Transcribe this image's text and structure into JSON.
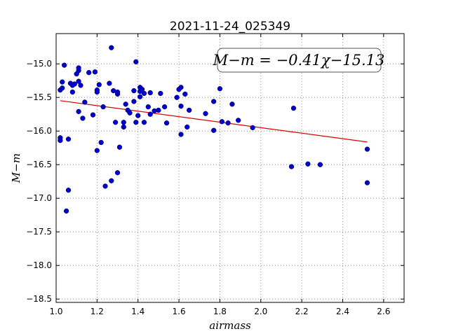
{
  "chart_data": {
    "type": "scatter",
    "title": "2021-11-24_025349",
    "xlabel": "airmass",
    "ylabel": "M−m",
    "xlim": [
      1.0,
      2.7
    ],
    "ylim": [
      -18.55,
      -14.55
    ],
    "x_ticks": [
      1.0,
      1.2,
      1.4,
      1.6,
      1.8,
      2.0,
      2.2,
      2.4,
      2.6
    ],
    "y_ticks": [
      -15.0,
      -15.5,
      -16.0,
      -16.5,
      -17.0,
      -17.5,
      -18.0,
      -18.5
    ],
    "x_tick_labels": [
      "1.0",
      "1.2",
      "1.4",
      "1.6",
      "1.8",
      "2.0",
      "2.2",
      "2.4",
      "2.6"
    ],
    "y_tick_labels": [
      "−15.0",
      "−15.5",
      "−16.0",
      "−16.5",
      "−17.0",
      "−17.5",
      "−18.0",
      "−18.5"
    ],
    "grid": true,
    "point_color": "#0000cc",
    "line_color": "#dd0000",
    "annotation": "M−m = −0.41χ−15.13",
    "fit": {
      "slope": -0.41,
      "intercept": -15.13,
      "x_range": [
        1.02,
        2.52
      ]
    },
    "points": [
      [
        1.02,
        -16.1
      ],
      [
        1.02,
        -16.14
      ],
      [
        1.02,
        -15.39
      ],
      [
        1.03,
        -15.27
      ],
      [
        1.03,
        -15.36
      ],
      [
        1.04,
        -15.02
      ],
      [
        1.05,
        -17.19
      ],
      [
        1.06,
        -16.88
      ],
      [
        1.06,
        -16.12
      ],
      [
        1.07,
        -15.29
      ],
      [
        1.08,
        -15.42
      ],
      [
        1.08,
        -15.32
      ],
      [
        1.09,
        -15.3
      ],
      [
        1.1,
        -15.15
      ],
      [
        1.11,
        -15.1
      ],
      [
        1.11,
        -15.06
      ],
      [
        1.11,
        -15.71
      ],
      [
        1.11,
        -15.26
      ],
      [
        1.12,
        -15.32
      ],
      [
        1.13,
        -15.81
      ],
      [
        1.14,
        -15.57
      ],
      [
        1.16,
        -15.13
      ],
      [
        1.18,
        -15.76
      ],
      [
        1.19,
        -15.12
      ],
      [
        1.2,
        -15.39
      ],
      [
        1.2,
        -15.42
      ],
      [
        1.2,
        -16.29
      ],
      [
        1.21,
        -15.31
      ],
      [
        1.22,
        -16.17
      ],
      [
        1.23,
        -15.64
      ],
      [
        1.24,
        -16.82
      ],
      [
        1.26,
        -15.29
      ],
      [
        1.27,
        -14.76
      ],
      [
        1.27,
        -16.74
      ],
      [
        1.28,
        -15.4
      ],
      [
        1.29,
        -15.87
      ],
      [
        1.3,
        -15.45
      ],
      [
        1.3,
        -15.42
      ],
      [
        1.3,
        -16.62
      ],
      [
        1.31,
        -16.24
      ],
      [
        1.33,
        -15.94
      ],
      [
        1.33,
        -15.87
      ],
      [
        1.34,
        -15.6
      ],
      [
        1.35,
        -15.69
      ],
      [
        1.36,
        -15.73
      ],
      [
        1.38,
        -15.4
      ],
      [
        1.38,
        -15.56
      ],
      [
        1.39,
        -14.97
      ],
      [
        1.39,
        -15.87
      ],
      [
        1.4,
        -15.77
      ],
      [
        1.41,
        -15.35
      ],
      [
        1.41,
        -15.41
      ],
      [
        1.41,
        -15.49
      ],
      [
        1.42,
        -15.38
      ],
      [
        1.43,
        -15.44
      ],
      [
        1.43,
        -15.87
      ],
      [
        1.45,
        -15.64
      ],
      [
        1.46,
        -15.43
      ],
      [
        1.46,
        -15.75
      ],
      [
        1.48,
        -15.7
      ],
      [
        1.5,
        -15.69
      ],
      [
        1.51,
        -15.44
      ],
      [
        1.53,
        -15.64
      ],
      [
        1.54,
        -15.88
      ],
      [
        1.59,
        -15.5
      ],
      [
        1.6,
        -15.38
      ],
      [
        1.61,
        -15.35
      ],
      [
        1.61,
        -16.05
      ],
      [
        1.61,
        -15.63
      ],
      [
        1.63,
        -15.45
      ],
      [
        1.64,
        -15.94
      ],
      [
        1.65,
        -15.69
      ],
      [
        1.73,
        -15.74
      ],
      [
        1.77,
        -15.56
      ],
      [
        1.77,
        -15.99
      ],
      [
        1.8,
        -15.37
      ],
      [
        1.81,
        -15.86
      ],
      [
        1.84,
        -15.88
      ],
      [
        1.86,
        -15.6
      ],
      [
        1.89,
        -15.84
      ],
      [
        1.96,
        -15.95
      ],
      [
        2.15,
        -16.53
      ],
      [
        2.16,
        -15.66
      ],
      [
        2.23,
        -16.49
      ],
      [
        2.29,
        -16.5
      ],
      [
        2.52,
        -16.27
      ],
      [
        2.52,
        -16.77
      ]
    ]
  }
}
